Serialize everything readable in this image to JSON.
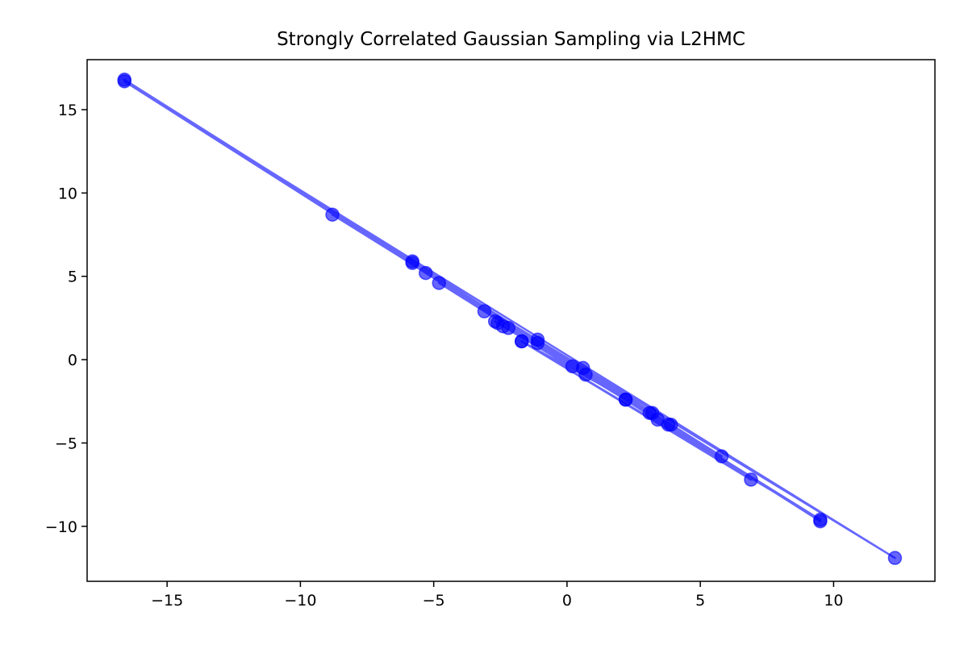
{
  "chart_data": {
    "type": "line",
    "title": "Strongly Correlated Gaussian Sampling via L2HMC",
    "xlabel": "",
    "ylabel": "",
    "xlim": [
      -18.0,
      13.8
    ],
    "ylim": [
      -13.3,
      18.0
    ],
    "xticks": [
      -15,
      -10,
      -5,
      0,
      5,
      10
    ],
    "yticks": [
      -10,
      -5,
      0,
      5,
      10,
      15
    ],
    "xtick_labels": [
      "−15",
      "−10",
      "−5",
      "0",
      "5",
      "10"
    ],
    "ytick_labels": [
      "−10",
      "−5",
      "0",
      "5",
      "10",
      "15"
    ],
    "grid": false,
    "legend": "none",
    "series": [
      {
        "color": "#0000ff",
        "alpha": 0.6,
        "marker": "circle",
        "x": [
          -1.7,
          3.2,
          -2.4,
          5.8,
          -16.6,
          9.5,
          -5.8,
          0.2,
          -1.1,
          2.2,
          -2.7,
          3.9,
          -8.8,
          12.3,
          -16.6,
          0.7,
          -2.2,
          3.1,
          -5.3,
          6.9,
          -1.7,
          9.5,
          -4.8,
          2.2,
          -3.1,
          3.4,
          -5.8,
          0.6,
          -1.1,
          3.8,
          -2.6
        ],
        "y": [
          1.1,
          -3.2,
          2.0,
          -5.8,
          16.8,
          -9.7,
          5.9,
          -0.4,
          1.2,
          -2.4,
          2.3,
          -3.9,
          8.7,
          -11.9,
          16.7,
          -0.9,
          1.9,
          -3.2,
          5.2,
          -7.2,
          1.1,
          -9.6,
          4.6,
          -2.4,
          2.9,
          -3.6,
          5.8,
          -0.5,
          1.0,
          -3.9,
          2.2
        ]
      }
    ]
  }
}
